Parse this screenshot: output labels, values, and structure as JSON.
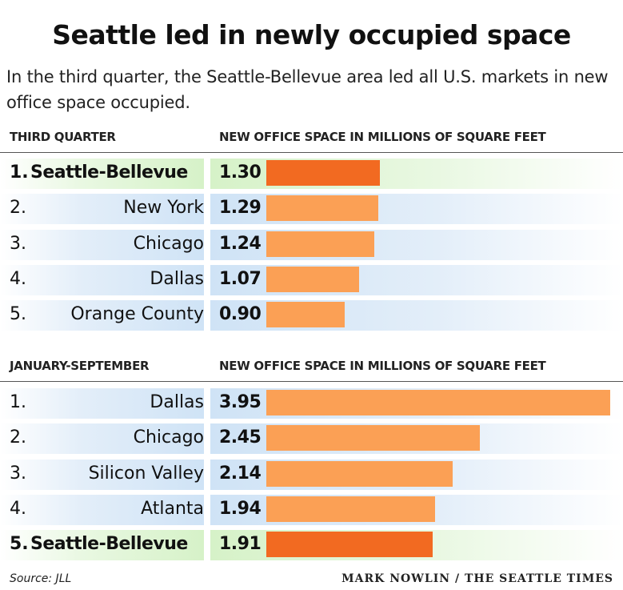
{
  "title": "Seattle led in newly occupied space",
  "subtitle": "In the third quarter, the Seattle-Bellevue area led all U.S. markets in new office space occupied.",
  "source": "Source: JLL",
  "credit": "MARK NOWLIN / THE SEATTLE TIMES",
  "colors": {
    "highlight_bar": "#f26a21",
    "normal_bar": "#fba055",
    "highlight_row": "#d6f2c8",
    "normal_row": "#cfe3f6"
  },
  "chart_data": [
    {
      "type": "bar",
      "section_label": "THIRD QUARTER",
      "value_label": "NEW OFFICE SPACE IN MILLIONS OF SQUARE FEET",
      "xlim": [
        0,
        3.95
      ],
      "rows": [
        {
          "rank": "1.",
          "name": "Seattle-Bellevue",
          "value": 1.3,
          "value_label": "1.30",
          "highlight": true
        },
        {
          "rank": "2.",
          "name": "New York",
          "value": 1.29,
          "value_label": "1.29",
          "highlight": false
        },
        {
          "rank": "3.",
          "name": "Chicago",
          "value": 1.24,
          "value_label": "1.24",
          "highlight": false
        },
        {
          "rank": "4.",
          "name": "Dallas",
          "value": 1.07,
          "value_label": "1.07",
          "highlight": false
        },
        {
          "rank": "5.",
          "name": "Orange County",
          "value": 0.9,
          "value_label": "0.90",
          "highlight": false
        }
      ]
    },
    {
      "type": "bar",
      "section_label": "JANUARY-SEPTEMBER",
      "value_label": "NEW OFFICE SPACE IN MILLIONS OF SQUARE FEET",
      "xlim": [
        0,
        3.95
      ],
      "rows": [
        {
          "rank": "1.",
          "name": "Dallas",
          "value": 3.95,
          "value_label": "3.95",
          "highlight": false
        },
        {
          "rank": "2.",
          "name": "Chicago",
          "value": 2.45,
          "value_label": "2.45",
          "highlight": false
        },
        {
          "rank": "3.",
          "name": "Silicon Valley",
          "value": 2.14,
          "value_label": "2.14",
          "highlight": false
        },
        {
          "rank": "4.",
          "name": "Atlanta",
          "value": 1.94,
          "value_label": "1.94",
          "highlight": false
        },
        {
          "rank": "5.",
          "name": "Seattle-Bellevue",
          "value": 1.91,
          "value_label": "1.91",
          "highlight": true
        }
      ]
    }
  ]
}
